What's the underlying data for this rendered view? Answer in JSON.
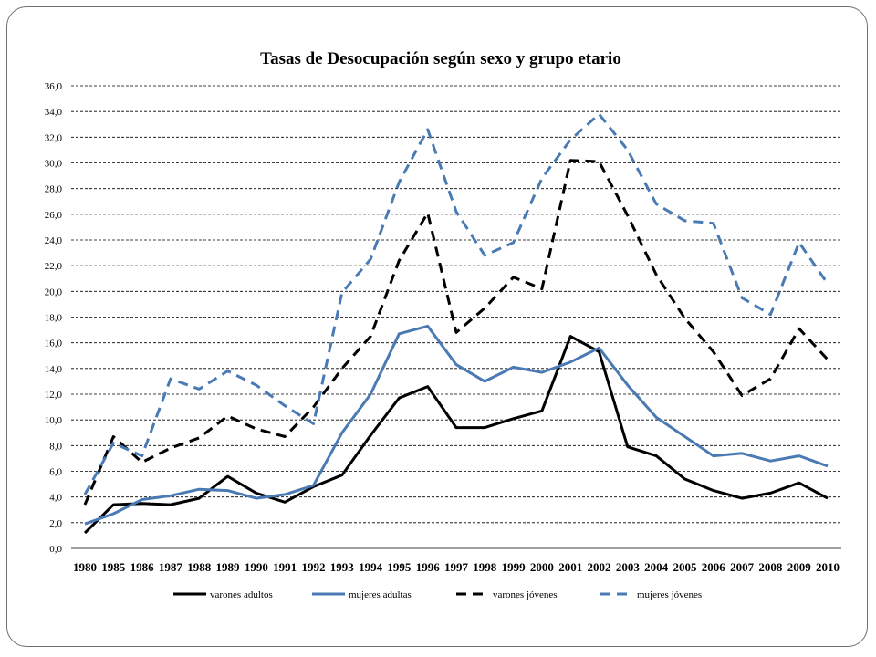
{
  "chart_data": {
    "type": "line",
    "title": "Tasas de Desocupación según sexo y grupo etario",
    "xlabel": "",
    "ylabel": "",
    "ylim": [
      0,
      36
    ],
    "ytick_labels": [
      "0,0",
      "2,0",
      "4,0",
      "6,0",
      "8,0",
      "10,0",
      "12,0",
      "14,0",
      "16,0",
      "18,0",
      "20,0",
      "22,0",
      "24,0",
      "26,0",
      "28,0",
      "30,0",
      "32,0",
      "34,0",
      "36,0"
    ],
    "categories": [
      "1980",
      "1985",
      "1986",
      "1987",
      "1988",
      "1989",
      "1990",
      "1991",
      "1992",
      "1993",
      "1994",
      "1995",
      "1996",
      "1997",
      "1998",
      "1999",
      "2000",
      "2001",
      "2002",
      "2003",
      "2004",
      "2005",
      "2006",
      "2007",
      "2008",
      "2009",
      "2010"
    ],
    "grid": "horizontal dashed",
    "legend_position": "bottom",
    "series": [
      {
        "name": "varones adultos",
        "color": "#000000",
        "dash": "solid",
        "values": [
          1.2,
          3.4,
          3.5,
          3.4,
          3.9,
          5.6,
          4.3,
          3.6,
          4.8,
          5.7,
          8.8,
          11.7,
          12.6,
          9.4,
          9.4,
          10.1,
          10.7,
          16.5,
          15.3,
          7.9,
          7.2,
          5.4,
          4.5,
          3.9,
          4.3,
          5.1,
          3.9
        ]
      },
      {
        "name": "mujeres adultas",
        "color": "#4a7ab4",
        "dash": "solid",
        "values": [
          1.9,
          2.7,
          3.8,
          4.1,
          4.6,
          4.5,
          3.9,
          4.2,
          4.9,
          9.0,
          12.0,
          16.7,
          17.3,
          14.3,
          13.0,
          14.1,
          13.7,
          14.5,
          15.6,
          12.7,
          10.2,
          8.7,
          7.2,
          7.4,
          6.8,
          7.2,
          6.4
        ]
      },
      {
        "name": "varones jóvenes",
        "color": "#000000",
        "dash": "dashed",
        "values": [
          3.4,
          8.7,
          6.7,
          7.8,
          8.6,
          10.3,
          9.3,
          8.7,
          11.0,
          14.0,
          16.5,
          22.4,
          26.1,
          16.8,
          18.7,
          21.1,
          20.2,
          30.2,
          30.1,
          25.9,
          21.3,
          17.9,
          15.3,
          11.9,
          13.2,
          17.1,
          14.7
        ]
      },
      {
        "name": "mujeres jóvenes",
        "color": "#4a7ab4",
        "dash": "dashed",
        "values": [
          4.2,
          8.2,
          7.2,
          13.2,
          12.4,
          13.8,
          12.7,
          11.1,
          9.7,
          19.9,
          22.5,
          28.5,
          32.6,
          26.2,
          22.8,
          23.8,
          28.8,
          31.8,
          33.8,
          31.0,
          26.8,
          25.5,
          25.3,
          19.5,
          18.2,
          23.8,
          20.6
        ]
      }
    ]
  }
}
